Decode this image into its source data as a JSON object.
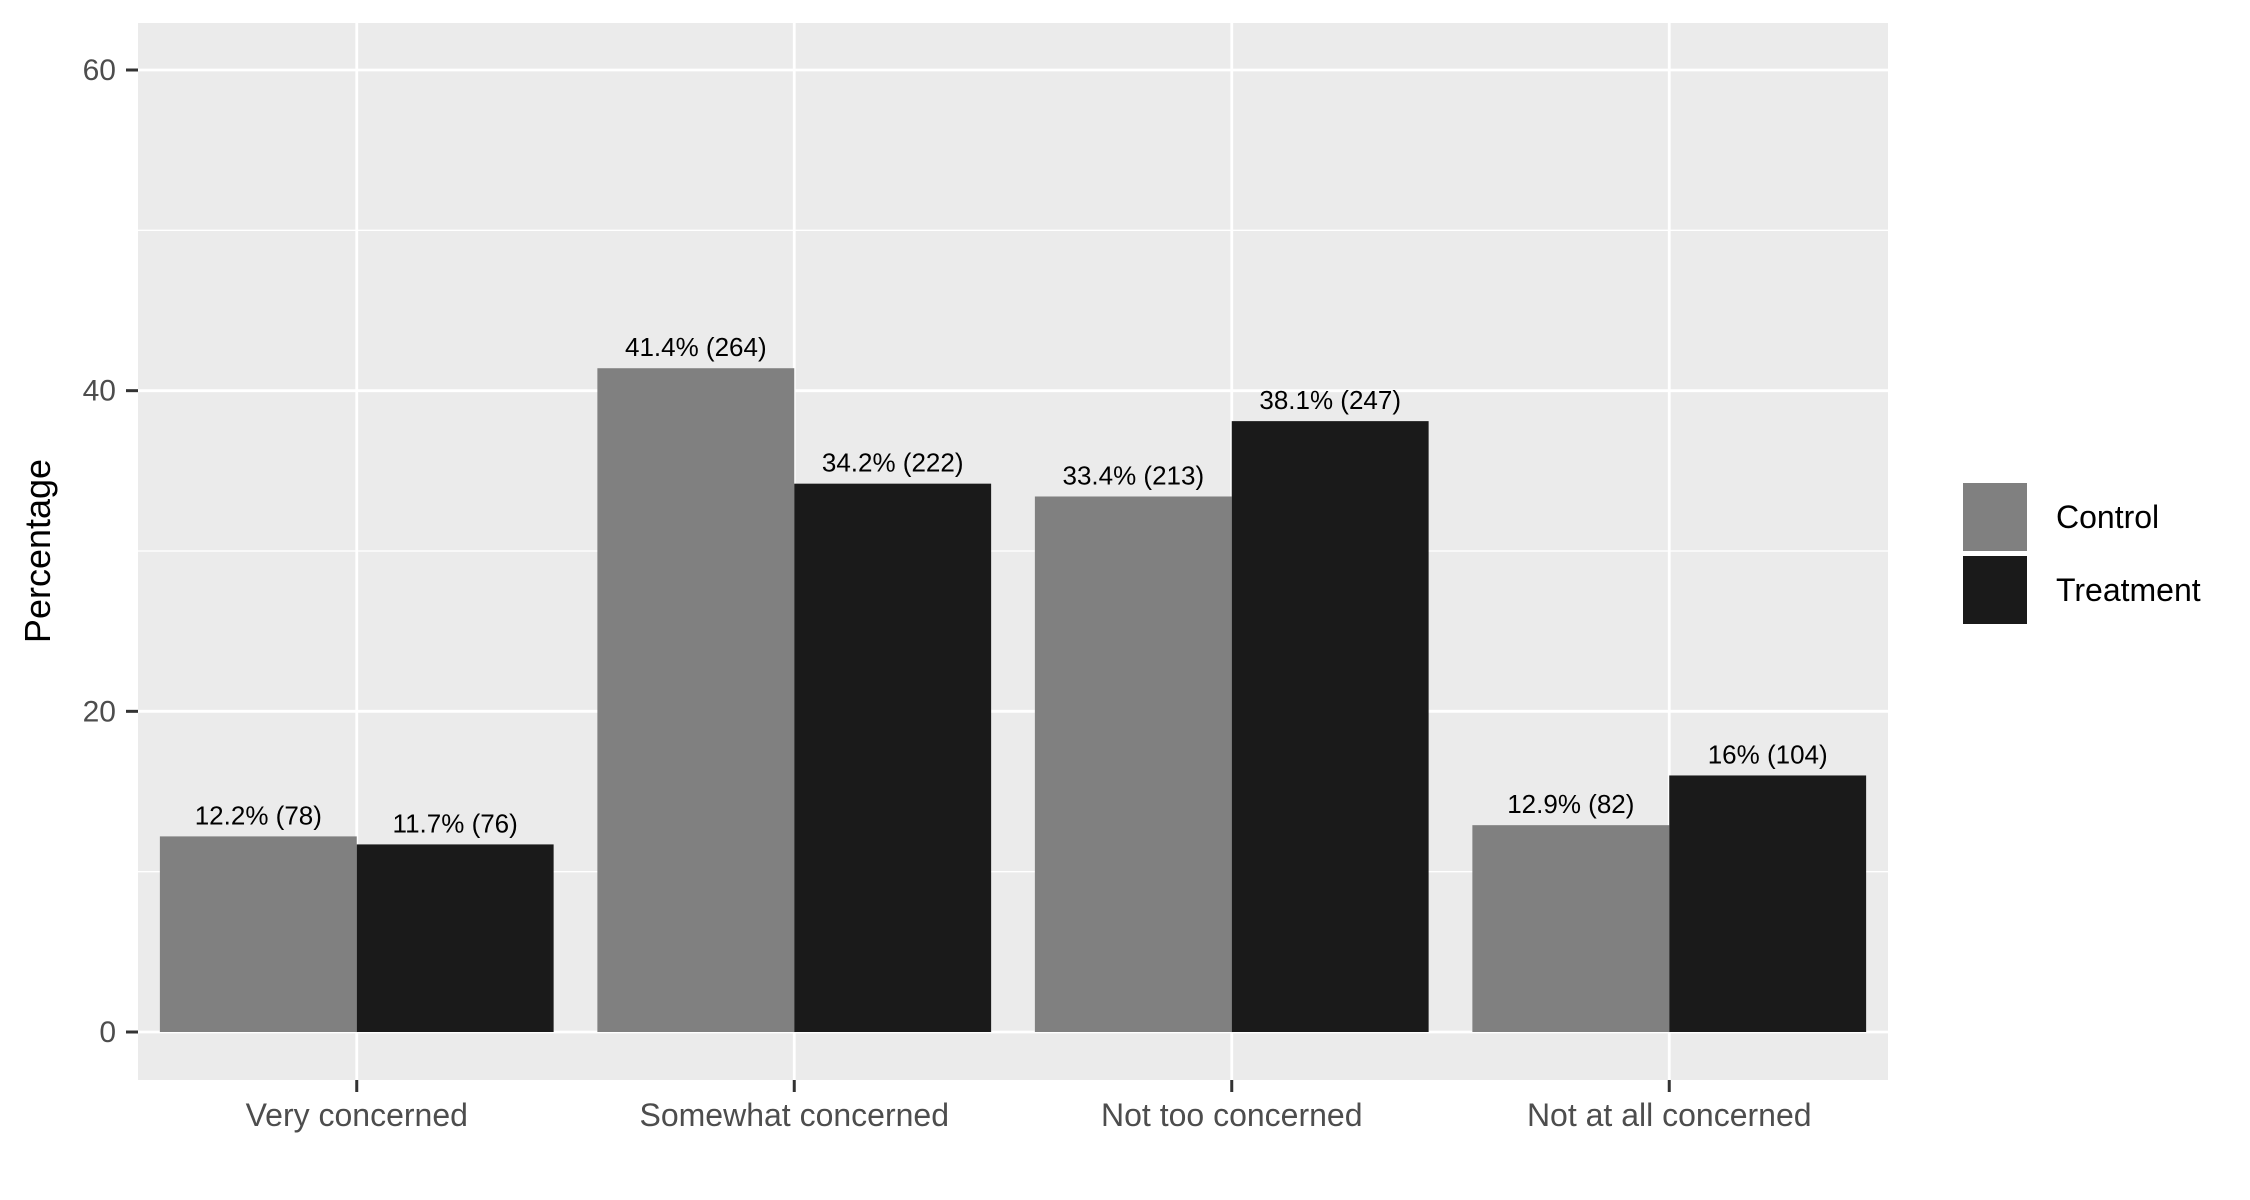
{
  "chart_data": {
    "type": "bar",
    "title": "",
    "xlabel": "",
    "ylabel": "Percentage",
    "ylim": [
      0,
      62
    ],
    "yticks": [
      0,
      20,
      40,
      60
    ],
    "grid": true,
    "legend_position": "right",
    "categories": [
      "Very concerned",
      "Somewhat concerned",
      "Not too concerned",
      "Not at all concerned"
    ],
    "series": [
      {
        "name": "Control",
        "color": "#808080",
        "values": [
          12.2,
          41.4,
          33.4,
          12.9
        ],
        "labels": [
          "12.2% (78)",
          "41.4% (264)",
          "33.4% (213)",
          "12.9% (82)"
        ]
      },
      {
        "name": "Treatment",
        "color": "#1a1a1a",
        "values": [
          11.7,
          34.2,
          38.1,
          16
        ],
        "labels": [
          "11.7% (76)",
          "34.2% (222)",
          "38.1% (247)",
          "16% (104)"
        ]
      }
    ]
  }
}
